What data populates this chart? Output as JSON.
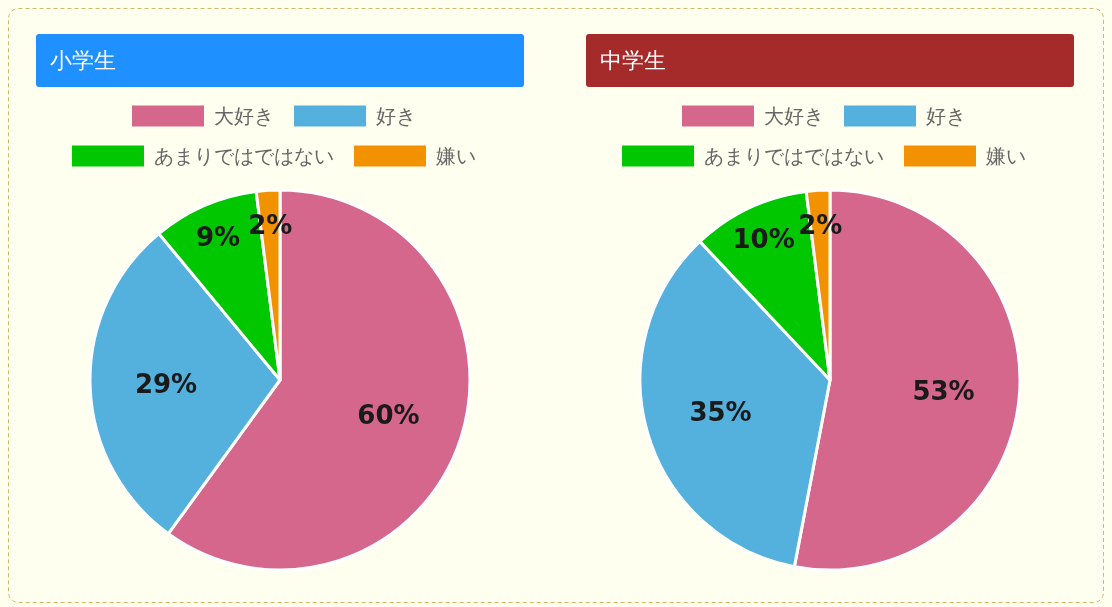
{
  "chart_data": [
    {
      "type": "pie",
      "title": "小学生",
      "categories": [
        "大好き",
        "好き",
        "あまりではではない",
        "嫌い"
      ],
      "values": [
        60,
        29,
        9,
        2
      ],
      "colors": [
        "#d4678b",
        "#54b0dc",
        "#00c700",
        "#f29200"
      ],
      "value_labels": [
        "60%",
        "29%",
        "9%",
        "2%"
      ],
      "legend": "top"
    },
    {
      "type": "pie",
      "title": "中学生",
      "categories": [
        "大好き",
        "好き",
        "あまりではではない",
        "嫌い"
      ],
      "values": [
        53,
        35,
        10,
        2
      ],
      "colors": [
        "#d4678b",
        "#54b0dc",
        "#00c700",
        "#f29200"
      ],
      "value_labels": [
        "53%",
        "35%",
        "10%",
        "2%"
      ],
      "legend": "top"
    }
  ]
}
